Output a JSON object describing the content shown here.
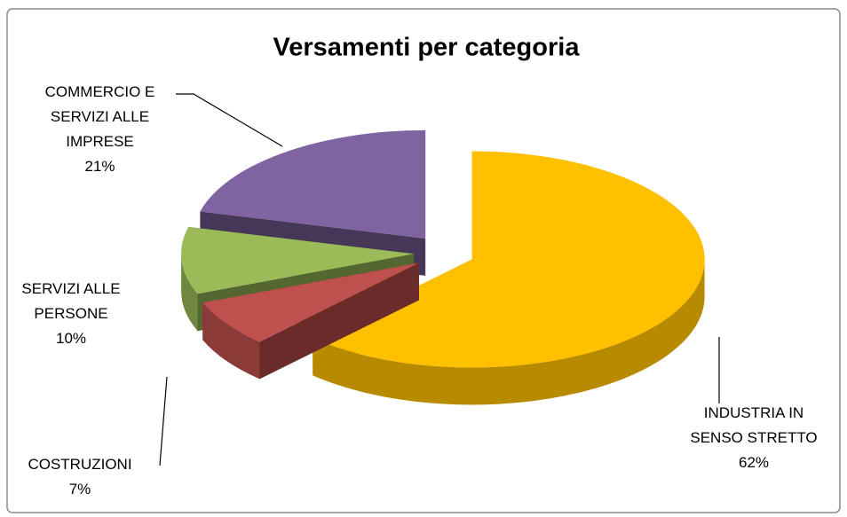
{
  "chart_data": {
    "type": "pie",
    "title": "Versamenti per categoria",
    "categories": [
      "INDUSTRIA IN SENSO STRETTO",
      "COSTRUZIONI",
      "SERVIZI ALLE PERSONE",
      "COMMERCIO E SERVIZI ALLE IMPRESE"
    ],
    "values": [
      62,
      7,
      10,
      21
    ],
    "value_labels": [
      "62%",
      "7%",
      "10%",
      "21%"
    ],
    "colors": [
      "#FFC000",
      "#C0504D",
      "#9BBB59",
      "#8064A2"
    ]
  }
}
